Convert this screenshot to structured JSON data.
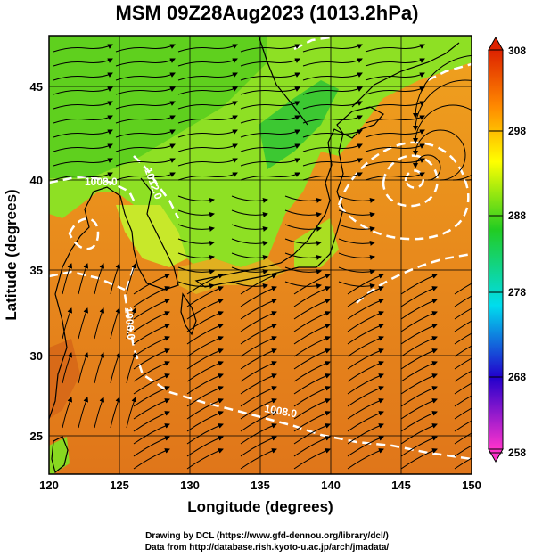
{
  "title": "MSM 09Z28Aug2023 (1013.2hPa)",
  "x_axis": {
    "label": "Longitude (degrees)",
    "ticks": [
      "120",
      "125",
      "130",
      "135",
      "140",
      "145",
      "150"
    ]
  },
  "y_axis": {
    "label": "Latitude  (degrees)",
    "ticks": [
      "25",
      "30",
      "35",
      "40",
      "45"
    ]
  },
  "colorbar": {
    "ticks": [
      "258",
      "268",
      "278",
      "288",
      "298",
      "308"
    ],
    "colors": [
      "#ff33cc",
      "#2200cc",
      "#00ddee",
      "#22cc22",
      "#ffff00",
      "#ff8800",
      "#dd2200"
    ]
  },
  "contour_labels": [
    "1008.0",
    "1012.0",
    "1000.0",
    "1000.0",
    "1008.0"
  ],
  "credits": {
    "line1": "Drawing by DCL (https://www.gfd-dennou.org/library/dcl/)",
    "line2": "Data from http://database.rish.kyoto-u.ac.jp/arch/jmadata/"
  },
  "map": {
    "sea_color": "#e07a1c",
    "land_green": "#77dd22",
    "typhoon_center": {
      "lon": 146.0,
      "lat": 40.0
    }
  }
}
